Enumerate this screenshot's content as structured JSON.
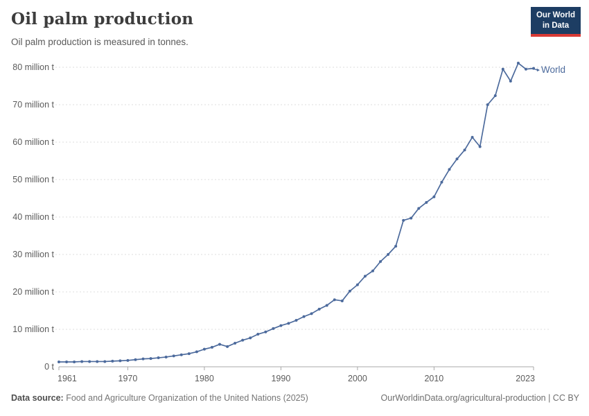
{
  "header": {
    "title": "Oil palm production",
    "subtitle": "Oil palm production is measured in tonnes.",
    "logo": {
      "line1": "Our World",
      "line2": "in Data",
      "bg_color": "#1d3d63",
      "accent_color": "#d93a35"
    }
  },
  "chart_data": {
    "type": "line",
    "title": "Oil palm production",
    "ylabel": "",
    "xlabel": "",
    "unit": "million tonnes",
    "grid": "horizontal-dashed",
    "xlim": [
      1961,
      2023
    ],
    "ylim": [
      0,
      82
    ],
    "x_ticks": [
      1961,
      1970,
      1980,
      1990,
      2000,
      2010,
      2023
    ],
    "y_ticks": [
      {
        "value": 0,
        "label": "0 t"
      },
      {
        "value": 10,
        "label": "10 million t"
      },
      {
        "value": 20,
        "label": "20 million t"
      },
      {
        "value": 30,
        "label": "30 million t"
      },
      {
        "value": 40,
        "label": "40 million t"
      },
      {
        "value": 50,
        "label": "50 million t"
      },
      {
        "value": 60,
        "label": "60 million t"
      },
      {
        "value": 70,
        "label": "70 million t"
      },
      {
        "value": 80,
        "label": "80 million t"
      }
    ],
    "series": [
      {
        "name": "World",
        "color": "#4C6A9C",
        "x": [
          1961,
          1962,
          1963,
          1964,
          1965,
          1966,
          1967,
          1968,
          1969,
          1970,
          1971,
          1972,
          1973,
          1974,
          1975,
          1976,
          1977,
          1978,
          1979,
          1980,
          1981,
          1982,
          1983,
          1984,
          1985,
          1986,
          1987,
          1988,
          1989,
          1990,
          1991,
          1992,
          1993,
          1994,
          1995,
          1996,
          1997,
          1998,
          1999,
          2000,
          2001,
          2002,
          2003,
          2004,
          2005,
          2006,
          2007,
          2008,
          2009,
          2010,
          2011,
          2012,
          2013,
          2014,
          2015,
          2016,
          2017,
          2018,
          2019,
          2020,
          2021,
          2022,
          2023
        ],
        "values": [
          1.3,
          1.3,
          1.3,
          1.4,
          1.4,
          1.4,
          1.4,
          1.5,
          1.6,
          1.7,
          1.9,
          2.1,
          2.2,
          2.4,
          2.6,
          2.9,
          3.2,
          3.5,
          4.0,
          4.7,
          5.2,
          6.0,
          5.4,
          6.3,
          7.1,
          7.7,
          8.7,
          9.3,
          10.2,
          11.0,
          11.6,
          12.4,
          13.4,
          14.2,
          15.4,
          16.4,
          17.9,
          17.6,
          20.2,
          21.9,
          24.2,
          25.6,
          28.1,
          30.0,
          32.2,
          39.1,
          39.7,
          42.3,
          43.9,
          45.4,
          49.3,
          52.7,
          55.5,
          57.9,
          61.3,
          58.8,
          70.0,
          72.4,
          79.5,
          76.3,
          81.1,
          79.5,
          79.7
        ]
      }
    ],
    "end_label": "World"
  },
  "footer": {
    "source_label": "Data source:",
    "source_text": "Food and Agriculture Organization of the United Nations (2025)",
    "credit": "OurWorldinData.org/agricultural-production | CC BY"
  }
}
